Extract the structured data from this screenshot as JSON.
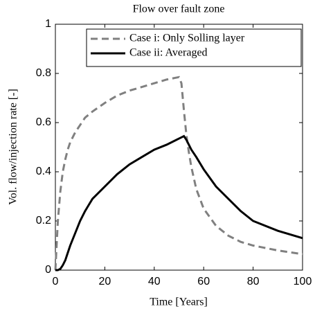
{
  "chart_data": {
    "type": "line",
    "title": "Flow over fault zone",
    "xlabel": "Time [Years]",
    "ylabel": "Vol. flow/injection rate [-]",
    "x": [
      0,
      1,
      2,
      3,
      4,
      5,
      6,
      8,
      10,
      12,
      15,
      20,
      25,
      30,
      35,
      40,
      45,
      50,
      51,
      52,
      53,
      54,
      55,
      57,
      60,
      65,
      70,
      75,
      80,
      90,
      100
    ],
    "series": [
      {
        "name": "Case i:  Only Solling layer",
        "color": "#808080",
        "linestyle": "dashed",
        "values": [
          0,
          0.2,
          0.32,
          0.4,
          0.45,
          0.49,
          0.52,
          0.56,
          0.59,
          0.62,
          0.645,
          0.68,
          0.71,
          0.73,
          0.745,
          0.76,
          0.775,
          0.785,
          0.76,
          0.65,
          0.55,
          0.48,
          0.42,
          0.33,
          0.25,
          0.18,
          0.14,
          0.115,
          0.1,
          0.08,
          0.065
        ]
      },
      {
        "name": "Case ii:  Averaged",
        "color": "#000000",
        "linestyle": "solid",
        "values": [
          0,
          0,
          0.005,
          0.02,
          0.04,
          0.07,
          0.1,
          0.15,
          0.2,
          0.24,
          0.29,
          0.34,
          0.39,
          0.43,
          0.46,
          0.49,
          0.51,
          0.535,
          0.54,
          0.545,
          0.53,
          0.51,
          0.49,
          0.46,
          0.41,
          0.34,
          0.29,
          0.24,
          0.2,
          0.16,
          0.13
        ]
      }
    ],
    "xlim": [
      0,
      100
    ],
    "xticks": [
      0,
      20,
      40,
      60,
      80,
      100
    ],
    "ylim": [
      0,
      1
    ],
    "yticks": [
      0,
      0.2,
      0.4,
      0.6,
      0.8,
      1
    ],
    "legend": "upper right",
    "grid": false
  }
}
